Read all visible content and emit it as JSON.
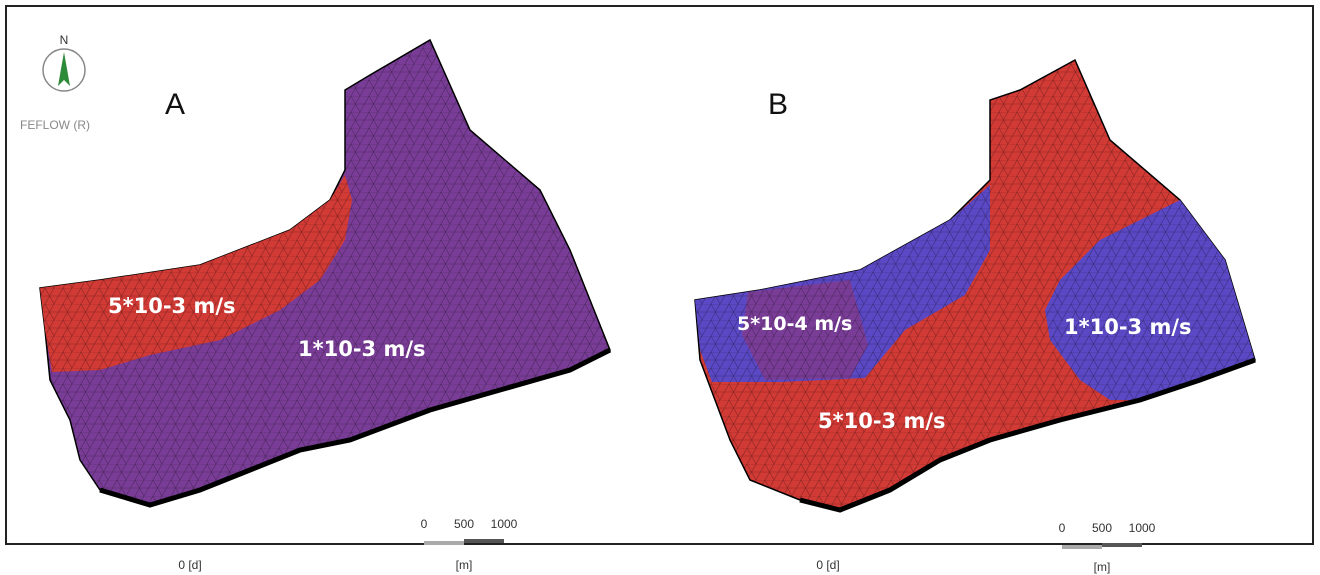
{
  "compass": {
    "label": "N"
  },
  "software": "FEFLOW (R)",
  "panels": [
    {
      "label": "A",
      "zones": [
        "5*10-3 m/s",
        "1*10-3 m/s"
      ],
      "time": "0 [d]",
      "scale": {
        "ticks": [
          0,
          500,
          1000
        ],
        "unit": "[m]"
      }
    },
    {
      "label": "B",
      "zones": [
        "5*10-4 m/s",
        "1*10-3 m/s",
        "5*10-3 m/s"
      ],
      "time": "0 [d]",
      "scale": {
        "ticks": [
          0,
          500,
          1000
        ],
        "unit": "[m]"
      }
    }
  ]
}
